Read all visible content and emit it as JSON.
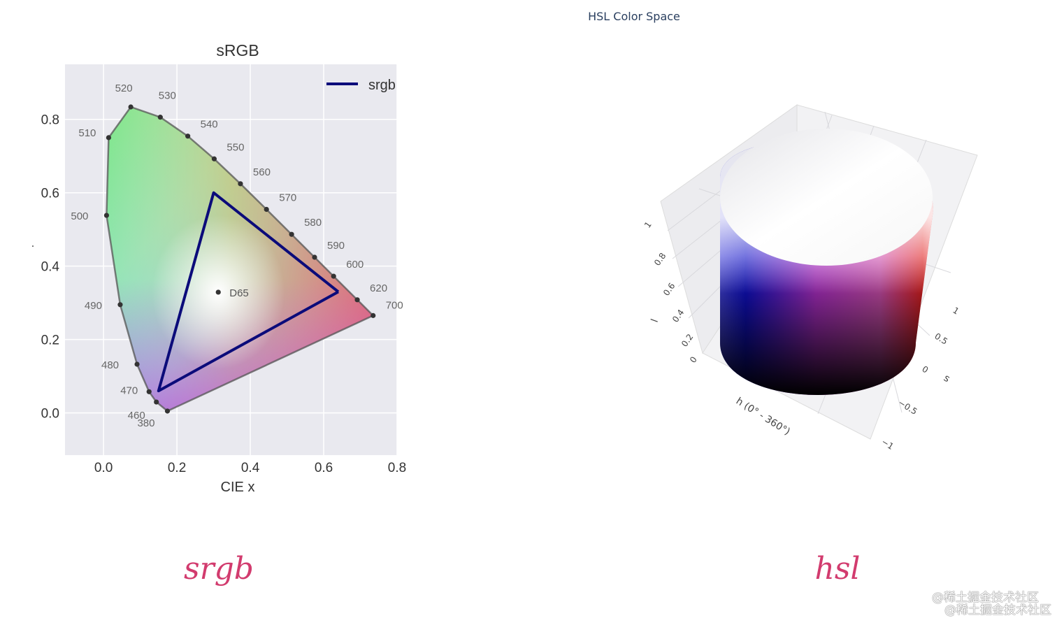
{
  "page": {
    "hsl_title": "HSL Color Space",
    "caption_left": "srgb",
    "caption_right": "hsl",
    "watermark_1": "@稀土掘金技术社区",
    "watermark_2": "@稀土掘金技术社区"
  },
  "chart_data": [
    {
      "type": "line",
      "title": "sRGB",
      "xlabel": "CIE x",
      "ylabel": "",
      "xlim": [
        -0.105,
        0.8
      ],
      "ylim": [
        -0.115,
        0.95
      ],
      "grid": true,
      "legend": "top-right",
      "x_ticks": [
        0.0,
        0.2,
        0.4,
        0.6,
        0.8
      ],
      "x_tick_labels": [
        "0.0",
        "0.2",
        "0.4",
        "0.6",
        "0.8"
      ],
      "y_ticks": [
        0.0,
        0.2,
        0.4,
        0.6,
        0.8
      ],
      "y_tick_labels": [
        "0.0",
        "0.2",
        "0.4",
        "0.6",
        "0.8"
      ],
      "series": [
        {
          "name": "srgb",
          "color": "#0b0b7a",
          "x": [
            0.64,
            0.3,
            0.15,
            0.64
          ],
          "y": [
            0.33,
            0.6,
            0.06,
            0.33
          ]
        }
      ],
      "spectral_locus": {
        "labels": [
          {
            "label": "380",
            "x": 0.1741,
            "y": 0.005
          },
          {
            "label": "460",
            "x": 0.144,
            "y": 0.0297
          },
          {
            "label": "470",
            "x": 0.1241,
            "y": 0.0578
          },
          {
            "label": "480",
            "x": 0.0913,
            "y": 0.1327
          },
          {
            "label": "490",
            "x": 0.0454,
            "y": 0.295
          },
          {
            "label": "500",
            "x": 0.0082,
            "y": 0.5384
          },
          {
            "label": "510",
            "x": 0.0139,
            "y": 0.7502
          },
          {
            "label": "520",
            "x": 0.0743,
            "y": 0.8338
          },
          {
            "label": "530",
            "x": 0.1547,
            "y": 0.8059
          },
          {
            "label": "540",
            "x": 0.2296,
            "y": 0.7543
          },
          {
            "label": "550",
            "x": 0.3016,
            "y": 0.6923
          },
          {
            "label": "560",
            "x": 0.3731,
            "y": 0.6245
          },
          {
            "label": "570",
            "x": 0.4441,
            "y": 0.5547
          },
          {
            "label": "580",
            "x": 0.5125,
            "y": 0.4866
          },
          {
            "label": "590",
            "x": 0.5752,
            "y": 0.4242
          },
          {
            "label": "600",
            "x": 0.627,
            "y": 0.3725
          },
          {
            "label": "620",
            "x": 0.6915,
            "y": 0.3083
          },
          {
            "label": "700",
            "x": 0.7347,
            "y": 0.2653
          }
        ]
      },
      "white_point": {
        "label": "D65",
        "x": 0.3127,
        "y": 0.329
      }
    },
    {
      "type": "surface",
      "title": "HSL Color Space",
      "description_axes": {
        "l_axis": {
          "label": "l",
          "ticks": [
            "0",
            "0.2",
            "0.4",
            "0.6",
            "0.8",
            "1"
          ]
        },
        "h_axis": {
          "label": "h (0° - 360°)"
        },
        "s_axis": {
          "label": "s",
          "ticks": [
            "1",
            "0.5",
            "0",
            "−0.5",
            "−1"
          ]
        }
      },
      "colors": {
        "blue": "#1010d0",
        "magenta": "#c020c0",
        "red": "#e02020",
        "black": "#000000",
        "white": "#ffffff"
      }
    }
  ]
}
